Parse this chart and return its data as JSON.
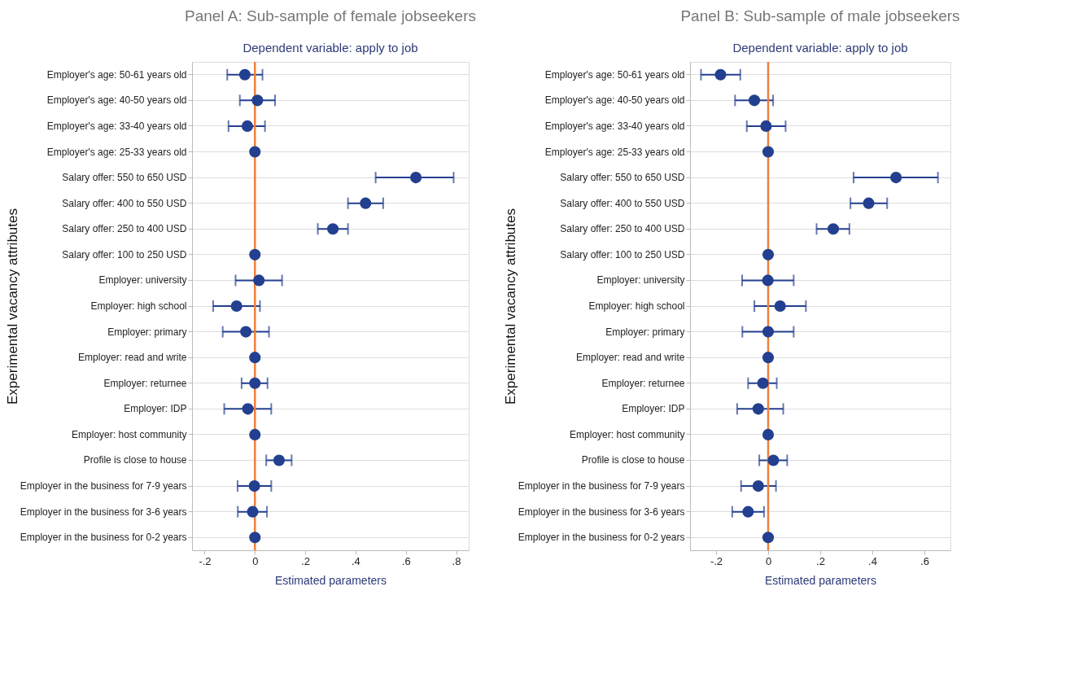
{
  "chart_data": [
    {
      "type": "scatter",
      "orientation": "horizontal",
      "title": "Panel A: Sub-sample of female jobseekers",
      "subtitle": "Dependent variable: apply to job",
      "xlabel": "Estimated parameters",
      "ylabel": "Experimental vacancy attributes",
      "categories": [
        "Employer's age: 50-61 years old",
        "Employer's age: 40-50 years old",
        "Employer's age: 33-40 years old",
        "Employer's age: 25-33 years old",
        "Salary offer: 550 to 650 USD",
        "Salary offer: 400 to 550 USD",
        "Salary offer: 250 to 400 USD",
        "Salary offer: 100 to 250 USD",
        "Employer: university",
        "Employer: high school",
        "Employer: primary",
        "Employer: read and write",
        "Employer: returnee",
        "Employer: IDP",
        "Employer: host community",
        "Profile is close to house",
        "Employer in the business for 7-9 years",
        "Employer in the business for 3-6 years",
        "Employer in the business for 0-2 years"
      ],
      "series": [
        {
          "color": "#233f8f",
          "values": [
            -0.04,
            0.01,
            -0.03,
            0,
            0.64,
            0.44,
            0.31,
            0,
            0.016,
            -0.073,
            -0.036,
            0,
            0,
            -0.028,
            0,
            0.096,
            -0.002,
            -0.009,
            0
          ],
          "errors": [
            [
              -0.11,
              0.03
            ],
            [
              -0.06,
              0.08
            ],
            [
              -0.105,
              0.04
            ],
            null,
            [
              0.48,
              0.79
            ],
            [
              0.37,
              0.51
            ],
            [
              0.25,
              0.37
            ],
            null,
            [
              -0.077,
              0.108
            ],
            [
              -0.166,
              0.02
            ],
            [
              -0.128,
              0.056
            ],
            null,
            [
              -0.053,
              0.05
            ],
            [
              -0.122,
              0.065
            ],
            null,
            [
              0.045,
              0.146
            ],
            [
              -0.069,
              0.065
            ],
            [
              -0.068,
              0.048
            ],
            null
          ]
        }
      ],
      "xlim": [
        -0.25,
        0.85
      ],
      "xticks": [
        {
          "value": -0.2,
          "label": "-.2"
        },
        0,
        {
          "value": 0.2,
          "label": ".2"
        },
        {
          "value": 0.4,
          "label": ".4"
        },
        {
          "value": 0.6,
          "label": ".6"
        },
        {
          "value": 0.8,
          "label": ".8"
        }
      ],
      "ref_lines": [
        {
          "axis": "x",
          "value": 0,
          "color": "#f07f3c"
        }
      ],
      "grid": "y",
      "marker": "circle",
      "legend": false
    },
    {
      "type": "scatter",
      "orientation": "horizontal",
      "title": "Panel B: Sub-sample of male jobseekers",
      "subtitle": "Dependent variable: apply to job",
      "xlabel": "Estimated parameters",
      "ylabel": "Experimental vacancy attributes",
      "categories": [
        "Employer's age: 50-61 years old",
        "Employer's age: 40-50 years old",
        "Employer's age: 33-40 years old",
        "Employer's age: 25-33 years old",
        "Salary offer: 550 to 650 USD",
        "Salary offer: 400 to 550 USD",
        "Salary offer: 250 to 400 USD",
        "Salary offer: 100 to 250 USD",
        "Employer: university",
        "Employer: high school",
        "Employer: primary",
        "Employer: read and write",
        "Employer: returnee",
        "Employer: IDP",
        "Employer: host community",
        "Profile is close to house",
        "Employer in the business for 7-9 years",
        "Employer in the business for 3-6 years",
        "Employer in the business for 0-2 years"
      ],
      "series": [
        {
          "color": "#233f8f",
          "values": [
            -0.183,
            -0.053,
            -0.008,
            0,
            0.491,
            0.386,
            0.25,
            0,
            -0.001,
            0.046,
            0,
            0,
            -0.02,
            -0.038,
            0,
            0.02,
            -0.038,
            -0.077,
            0
          ],
          "errors": [
            [
              -0.258,
              -0.107
            ],
            [
              -0.127,
              0.019
            ],
            [
              -0.082,
              0.067
            ],
            null,
            [
              0.328,
              0.652
            ],
            [
              0.316,
              0.457
            ],
            [
              0.186,
              0.312
            ],
            null,
            [
              -0.1,
              0.098
            ],
            [
              -0.053,
              0.145
            ],
            [
              -0.099,
              0.098
            ],
            null,
            [
              -0.077,
              0.033
            ],
            [
              -0.119,
              0.058
            ],
            null,
            [
              -0.034,
              0.073
            ],
            [
              -0.104,
              0.03
            ],
            [
              -0.138,
              -0.016
            ],
            null
          ]
        }
      ],
      "xlim": [
        -0.3,
        0.7
      ],
      "xticks": [
        {
          "value": -0.2,
          "label": "-.2"
        },
        0,
        {
          "value": 0.2,
          "label": ".2"
        },
        {
          "value": 0.4,
          "label": ".4"
        },
        {
          "value": 0.6,
          "label": ".6"
        }
      ],
      "ref_lines": [
        {
          "axis": "x",
          "value": 0,
          "color": "#f07f3c"
        }
      ],
      "grid": "y",
      "marker": "circle",
      "legend": false
    }
  ]
}
